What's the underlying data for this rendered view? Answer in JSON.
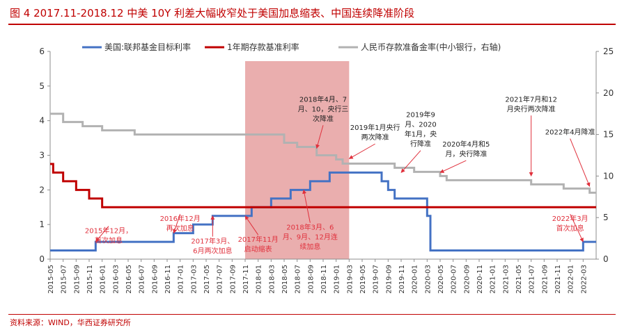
{
  "header": {
    "title": "图 4   2017.11-2018.12 中美 10Y 利差大幅收窄处于美国加息缩表、中国连续降准阶段"
  },
  "footer": {
    "source": "资料来源：WIND，华西证券研究所"
  },
  "colors": {
    "us": "#4472c4",
    "cn_deposit": "#c00000",
    "rrr": "#b2b2b2",
    "highlight": "#e6a0a0",
    "annotation": "#e0303c",
    "text": "#222222",
    "axis": "#8c8c8c"
  },
  "chart_data": {
    "type": "line",
    "x_ticks": [
      "2015-05",
      "2015-07",
      "2015-09",
      "2015-11",
      "2016-01",
      "2016-03",
      "2016-05",
      "2016-07",
      "2016-09",
      "2016-11",
      "2017-01",
      "2017-03",
      "2017-05",
      "2017-07",
      "2017-09",
      "2017-11",
      "2018-01",
      "2018-03",
      "2018-05",
      "2018-07",
      "2018-09",
      "2018-11",
      "2019-01",
      "2019-03",
      "2019-05",
      "2019-07",
      "2019-09",
      "2019-11",
      "2020-01",
      "2020-03",
      "2020-05",
      "2020-07",
      "2020-09",
      "2020-11",
      "2021-01",
      "2021-03",
      "2021-05",
      "2021-07",
      "2021-09",
      "2021-11",
      "2022-01",
      "2022-03"
    ],
    "x_range": [
      "2015-05",
      "2022-05"
    ],
    "y_left": {
      "min": 0,
      "max": 6,
      "ticks": [
        "0",
        "1",
        "2",
        "3",
        "4",
        "5",
        "6"
      ]
    },
    "y_right": {
      "min": 0,
      "max": 25,
      "ticks": [
        "0",
        "5",
        "10",
        "15",
        "20",
        "25"
      ]
    },
    "legend_position": "top",
    "highlight_band": {
      "from": "2017-11",
      "to": "2019-03"
    },
    "series": [
      {
        "name": "美国:联邦基金目标利率",
        "axis": "left",
        "step": [
          [
            "2015-05",
            0.25
          ],
          [
            "2015-12",
            0.5
          ],
          [
            "2016-12",
            0.75
          ],
          [
            "2017-03",
            1.0
          ],
          [
            "2017-06",
            1.25
          ],
          [
            "2017-12",
            1.5
          ],
          [
            "2018-03",
            1.75
          ],
          [
            "2018-06",
            2.0
          ],
          [
            "2018-09",
            2.25
          ],
          [
            "2018-12",
            2.5
          ],
          [
            "2019-08",
            2.25
          ],
          [
            "2019-09",
            2.0
          ],
          [
            "2019-10",
            1.75
          ],
          [
            "2020-03",
            1.25
          ],
          [
            "2020-03-16",
            0.25
          ],
          [
            "2022-03",
            0.5
          ],
          [
            "2022-05",
            0.5
          ]
        ]
      },
      {
        "name": "1年期存款基准利率",
        "axis": "left",
        "step": [
          [
            "2015-05",
            2.75
          ],
          [
            "2015-05-15",
            2.5
          ],
          [
            "2015-07",
            2.25
          ],
          [
            "2015-09",
            2.0
          ],
          [
            "2015-11",
            1.75
          ],
          [
            "2016-01",
            1.5
          ],
          [
            "2022-05",
            1.5
          ]
        ]
      },
      {
        "name": "人民币存款准备金率(中小银行，右轴)",
        "axis": "right",
        "step": [
          [
            "2015-05",
            17.5
          ],
          [
            "2015-07",
            16.5
          ],
          [
            "2015-10",
            16.0
          ],
          [
            "2016-01",
            15.5
          ],
          [
            "2016-06",
            15.0
          ],
          [
            "2018-05",
            14.0
          ],
          [
            "2018-07",
            13.5
          ],
          [
            "2018-10",
            12.5
          ],
          [
            "2019-01",
            12.0
          ],
          [
            "2019-02",
            11.5
          ],
          [
            "2019-10",
            11.0
          ],
          [
            "2020-01",
            10.5
          ],
          [
            "2020-05",
            10.0
          ],
          [
            "2020-06",
            9.5
          ],
          [
            "2021-07",
            9.0
          ],
          [
            "2021-12",
            8.5
          ],
          [
            "2022-04",
            8.0
          ],
          [
            "2022-05",
            8.0
          ]
        ]
      }
    ],
    "annotations": [
      {
        "lines": [
          "2015年12月，",
          "首次加息"
        ],
        "color": "red",
        "target": [
          "2015-12",
          0.5
        ],
        "text_at": [
          "2016-02",
          0.75
        ]
      },
      {
        "lines": [
          "2016年12月",
          "再次加息"
        ],
        "color": "red",
        "target": [
          "2016-12",
          0.75
        ],
        "text_at": [
          "2017-01",
          1.1
        ]
      },
      {
        "lines": [
          "2017年3月、",
          "6月两次加息"
        ],
        "color": "red",
        "target": [
          "2017-06",
          1.25
        ],
        "text_at": [
          "2017-06",
          0.45
        ]
      },
      {
        "lines": [
          "2017年11月",
          "启动缩表"
        ],
        "color": "red",
        "target": [
          "2017-11",
          1.25
        ],
        "text_at": [
          "2018-01",
          0.5
        ]
      },
      {
        "lines": [
          "2018年3月、6",
          "月、9月、12月连",
          "续加息"
        ],
        "color": "red",
        "target": [
          "2018-08",
          2.0
        ],
        "text_at": [
          "2018-09",
          0.85
        ]
      },
      {
        "lines": [
          "2022年3月",
          "首次加息"
        ],
        "color": "red",
        "target": [
          "2022-03",
          0.5
        ],
        "text_at": [
          "2022-01",
          1.1
        ]
      },
      {
        "lines": [
          "2018年4月、7",
          "月、10，央行三",
          "次降准"
        ],
        "color": "dark",
        "target": [
          "2018-10",
          3.2
        ],
        "text_at": [
          "2018-11",
          4.55
        ]
      },
      {
        "lines": [
          "2019年1月央行",
          "两次降准"
        ],
        "color": "dark",
        "target": [
          "2019-03",
          2.9
        ],
        "text_at": [
          "2019-07",
          3.73
        ]
      },
      {
        "lines": [
          "2019年9",
          "月、2020",
          "年1月，央",
          "行降准"
        ],
        "color": "dark",
        "target": [
          "2019-11",
          2.5
        ],
        "text_at": [
          "2020-02",
          4.1
        ]
      },
      {
        "lines": [
          "2020年4月和5",
          "月，央行降准"
        ],
        "color": "dark",
        "target": [
          "2020-05",
          2.5
        ],
        "text_at": [
          "2020-09",
          3.25
        ]
      },
      {
        "lines": [
          "2021年7月和12",
          "月央行两次降准"
        ],
        "color": "dark",
        "target": [
          "2021-07",
          2.4
        ],
        "text_at": [
          "2021-07",
          4.55
        ]
      },
      {
        "lines": [
          "2022年4月降准"
        ],
        "color": "dark",
        "target": [
          "2022-04",
          2.1
        ],
        "text_at": [
          "2022-01",
          3.6
        ]
      }
    ]
  }
}
